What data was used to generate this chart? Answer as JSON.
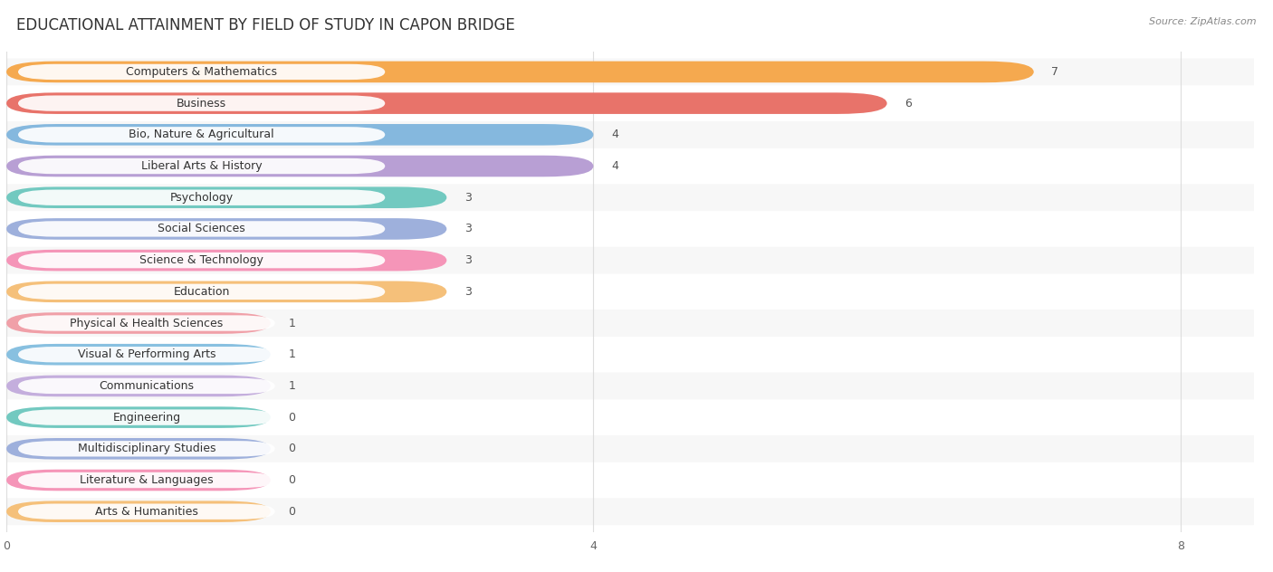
{
  "title": "EDUCATIONAL ATTAINMENT BY FIELD OF STUDY IN CAPON BRIDGE",
  "source": "Source: ZipAtlas.com",
  "categories": [
    "Computers & Mathematics",
    "Business",
    "Bio, Nature & Agricultural",
    "Liberal Arts & History",
    "Psychology",
    "Social Sciences",
    "Science & Technology",
    "Education",
    "Physical & Health Sciences",
    "Visual & Performing Arts",
    "Communications",
    "Engineering",
    "Multidisciplinary Studies",
    "Literature & Languages",
    "Arts & Humanities"
  ],
  "values": [
    7,
    6,
    4,
    4,
    3,
    3,
    3,
    3,
    1,
    1,
    1,
    0,
    0,
    0,
    0
  ],
  "bar_colors": [
    "#F5A94F",
    "#E8736A",
    "#85B8DE",
    "#B89FD4",
    "#72C9C0",
    "#9EB0DC",
    "#F595B8",
    "#F5C07A",
    "#F0A0A8",
    "#88C0E0",
    "#C4AEDD",
    "#72C9C0",
    "#9EB0DC",
    "#F595B8",
    "#F5C07A"
  ],
  "min_bar_width": 1.8,
  "xlim": [
    0,
    8.5
  ],
  "xticks": [
    0,
    4,
    8
  ],
  "row_colors": [
    "#f7f7f7",
    "#ffffff"
  ],
  "background_color": "#ffffff",
  "grid_color": "#dddddd",
  "title_fontsize": 12,
  "label_fontsize": 9,
  "value_fontsize": 9,
  "bar_height": 0.68
}
